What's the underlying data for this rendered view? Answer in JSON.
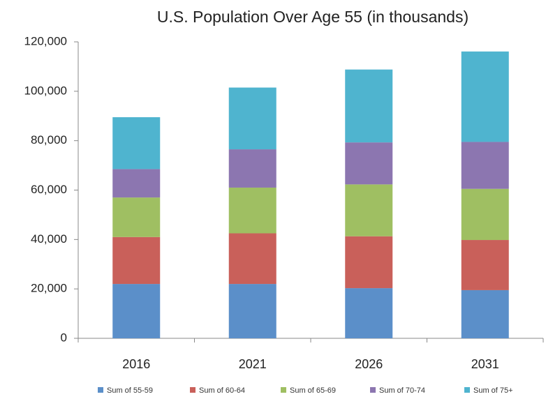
{
  "chart_data": {
    "type": "stacked_bar",
    "title": "U.S. Population Over Age 55 (in thousands)",
    "categories": [
      "2016",
      "2021",
      "2026",
      "2031"
    ],
    "series": [
      {
        "name": "Sum of 55-59",
        "color": "#5b8fc9",
        "values": [
          22000,
          22000,
          20300,
          19500
        ]
      },
      {
        "name": "Sum of 60-64",
        "color": "#c9605a",
        "values": [
          19000,
          20500,
          21000,
          20300
        ]
      },
      {
        "name": "Sum of 65-69",
        "color": "#9fbf62",
        "values": [
          16000,
          18500,
          21000,
          20700
        ]
      },
      {
        "name": "Sum of 70-74",
        "color": "#8c76b0",
        "values": [
          11500,
          15500,
          17000,
          19000
        ]
      },
      {
        "name": "Sum of 75+",
        "color": "#4fb4cf",
        "values": [
          21000,
          25000,
          29500,
          36600
        ]
      }
    ],
    "ylim": [
      0,
      120000
    ],
    "yticks": [
      0,
      {
        "value": 20000,
        "label": "20,000"
      },
      {
        "value": 40000,
        "label": "40,000"
      },
      {
        "value": 60000,
        "label": "60,000"
      },
      {
        "value": 80000,
        "label": "80,000"
      },
      {
        "value": 100000,
        "label": "100,000"
      },
      {
        "value": 120000,
        "label": "120,000"
      }
    ],
    "grid": false
  }
}
